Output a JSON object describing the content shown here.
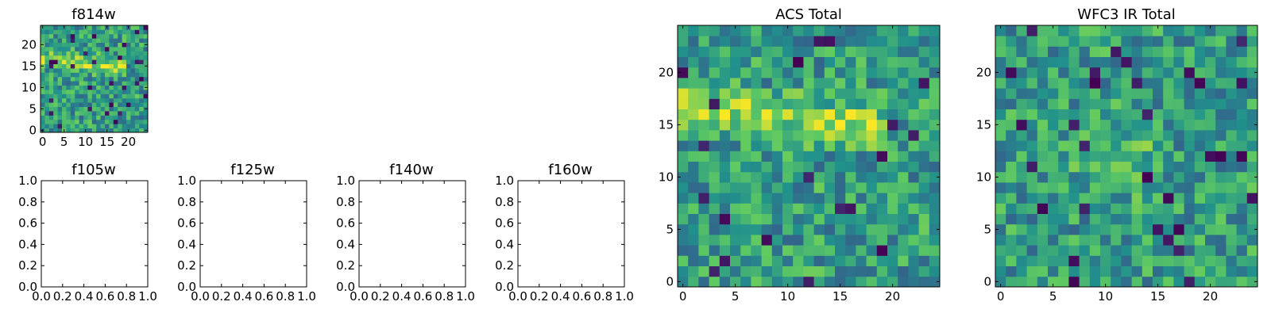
{
  "figure": {
    "panels": {
      "f814w": "f814w",
      "f105w": "f105w",
      "f125w": "f125w",
      "f140w": "f140w",
      "f160w": "f160w",
      "acs_total": "ACS Total",
      "wfc3_total": "WFC3 IR Total"
    }
  },
  "chart_data": [
    {
      "type": "heatmap",
      "title": "f814w",
      "size": [
        25,
        25
      ],
      "colormap": "viridis",
      "xlim": [
        -0.5,
        24.5
      ],
      "ylim": [
        -0.5,
        24.5
      ],
      "xticks": [
        0,
        5,
        10,
        15,
        20
      ],
      "yticks": [
        0,
        5,
        10,
        15,
        20
      ],
      "description_values": "synthetic noise image with bright band near y 14-20"
    },
    {
      "type": "line",
      "title": "f105w",
      "xlim": [
        0,
        1
      ],
      "ylim": [
        0,
        1
      ],
      "xticks": [
        "0.0",
        "0.2",
        "0.4",
        "0.6",
        "0.8",
        "1.0"
      ],
      "yticks": [
        "0.0",
        "0.2",
        "0.4",
        "0.6",
        "0.8",
        "1.0"
      ],
      "series": []
    },
    {
      "type": "line",
      "title": "f125w",
      "xlim": [
        0,
        1
      ],
      "ylim": [
        0,
        1
      ],
      "xticks": [
        "0.0",
        "0.2",
        "0.4",
        "0.6",
        "0.8",
        "1.0"
      ],
      "yticks": [
        "0.0",
        "0.2",
        "0.4",
        "0.6",
        "0.8",
        "1.0"
      ],
      "series": []
    },
    {
      "type": "line",
      "title": "f140w",
      "xlim": [
        0,
        1
      ],
      "ylim": [
        0,
        1
      ],
      "xticks": [
        "0.0",
        "0.2",
        "0.4",
        "0.6",
        "0.8",
        "1.0"
      ],
      "yticks": [
        "0.0",
        "0.2",
        "0.4",
        "0.6",
        "0.8",
        "1.0"
      ],
      "series": []
    },
    {
      "type": "line",
      "title": "f160w",
      "xlim": [
        0,
        1
      ],
      "ylim": [
        0,
        1
      ],
      "xticks": [
        "0.0",
        "0.2",
        "0.4",
        "0.6",
        "0.8",
        "1.0"
      ],
      "yticks": [
        "0.0",
        "0.2",
        "0.4",
        "0.6",
        "0.8",
        "1.0"
      ],
      "series": []
    },
    {
      "type": "heatmap",
      "title": "ACS Total",
      "size": [
        25,
        25
      ],
      "colormap": "viridis",
      "xlim": [
        -0.5,
        24.5
      ],
      "ylim": [
        -0.5,
        24.5
      ],
      "xticks": [
        0,
        5,
        10,
        15,
        20
      ],
      "yticks": [
        0,
        5,
        10,
        15,
        20
      ]
    },
    {
      "type": "heatmap",
      "title": "WFC3 IR Total",
      "size": [
        25,
        25
      ],
      "colormap": "viridis",
      "xlim": [
        -0.5,
        24.5
      ],
      "ylim": [
        -0.5,
        24.5
      ],
      "xticks": [
        0,
        5,
        10,
        15,
        20
      ],
      "yticks": [
        0,
        5,
        10,
        15,
        20
      ]
    }
  ]
}
